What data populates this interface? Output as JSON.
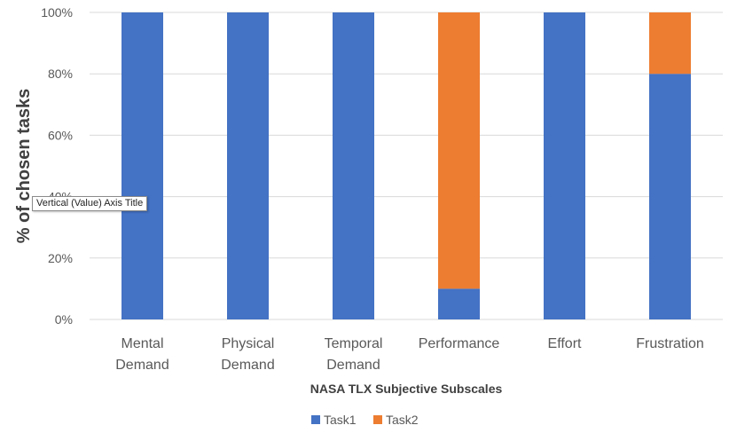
{
  "chart_data": {
    "type": "bar",
    "stacked": true,
    "percent": true,
    "title": "",
    "xlabel": "NASA TLX  Subjective Subscales",
    "ylabel": "% of chosen tasks",
    "ylim": [
      0,
      100
    ],
    "yticks": [
      "0%",
      "20%",
      "40%",
      "60%",
      "80%",
      "100%"
    ],
    "ytick_values": [
      0,
      20,
      40,
      60,
      80,
      100
    ],
    "grid": true,
    "legend_position": "bottom",
    "categories": [
      [
        "Mental",
        "Demand"
      ],
      [
        "Physical",
        "Demand"
      ],
      [
        "Temporal",
        "Demand"
      ],
      [
        "Performance"
      ],
      [
        "Effort"
      ],
      [
        "Frustration"
      ]
    ],
    "series": [
      {
        "name": "Task1",
        "color": "#4472C4",
        "values": [
          100,
          100,
          100,
          10,
          100,
          80
        ]
      },
      {
        "name": "Task2",
        "color": "#ED7D31",
        "values": [
          0,
          0,
          0,
          90,
          0,
          20
        ]
      }
    ]
  },
  "tooltip": {
    "text": "Vertical (Value) Axis Title"
  },
  "colors": {
    "grid": "#d9d9d9",
    "tick_text": "#595959",
    "label_text": "#404040"
  }
}
